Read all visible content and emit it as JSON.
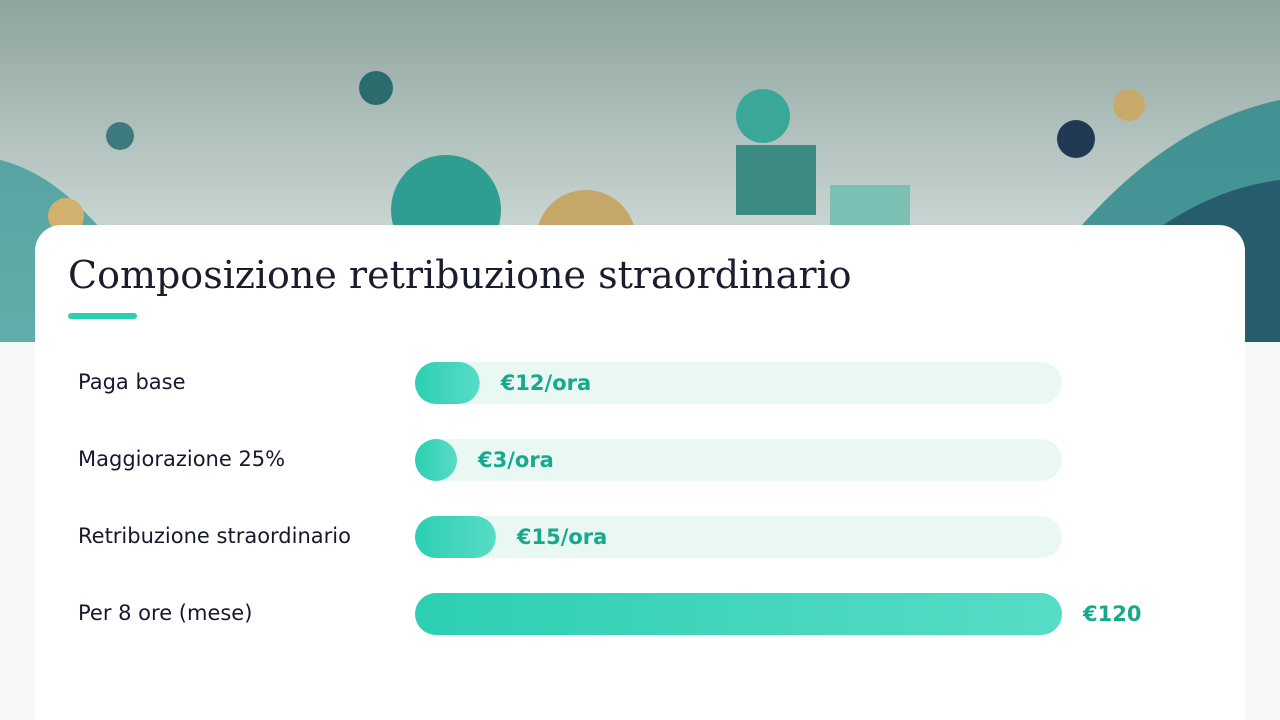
{
  "chart_data": {
    "type": "bar",
    "orientation": "horizontal",
    "title": "Composizione retribuzione straordinario",
    "categories": [
      "Paga base",
      "Maggiorazione 25%",
      "Retribuzione straordinario",
      "Per 8 ore (mese)"
    ],
    "values": [
      12,
      3,
      15,
      120
    ],
    "value_labels": [
      "€12/ora",
      "€3/ora",
      "€15/ora",
      "€120"
    ],
    "xlim": [
      0,
      120
    ],
    "color": "#2ccfb2",
    "track_color": "#eaf8f4"
  }
}
